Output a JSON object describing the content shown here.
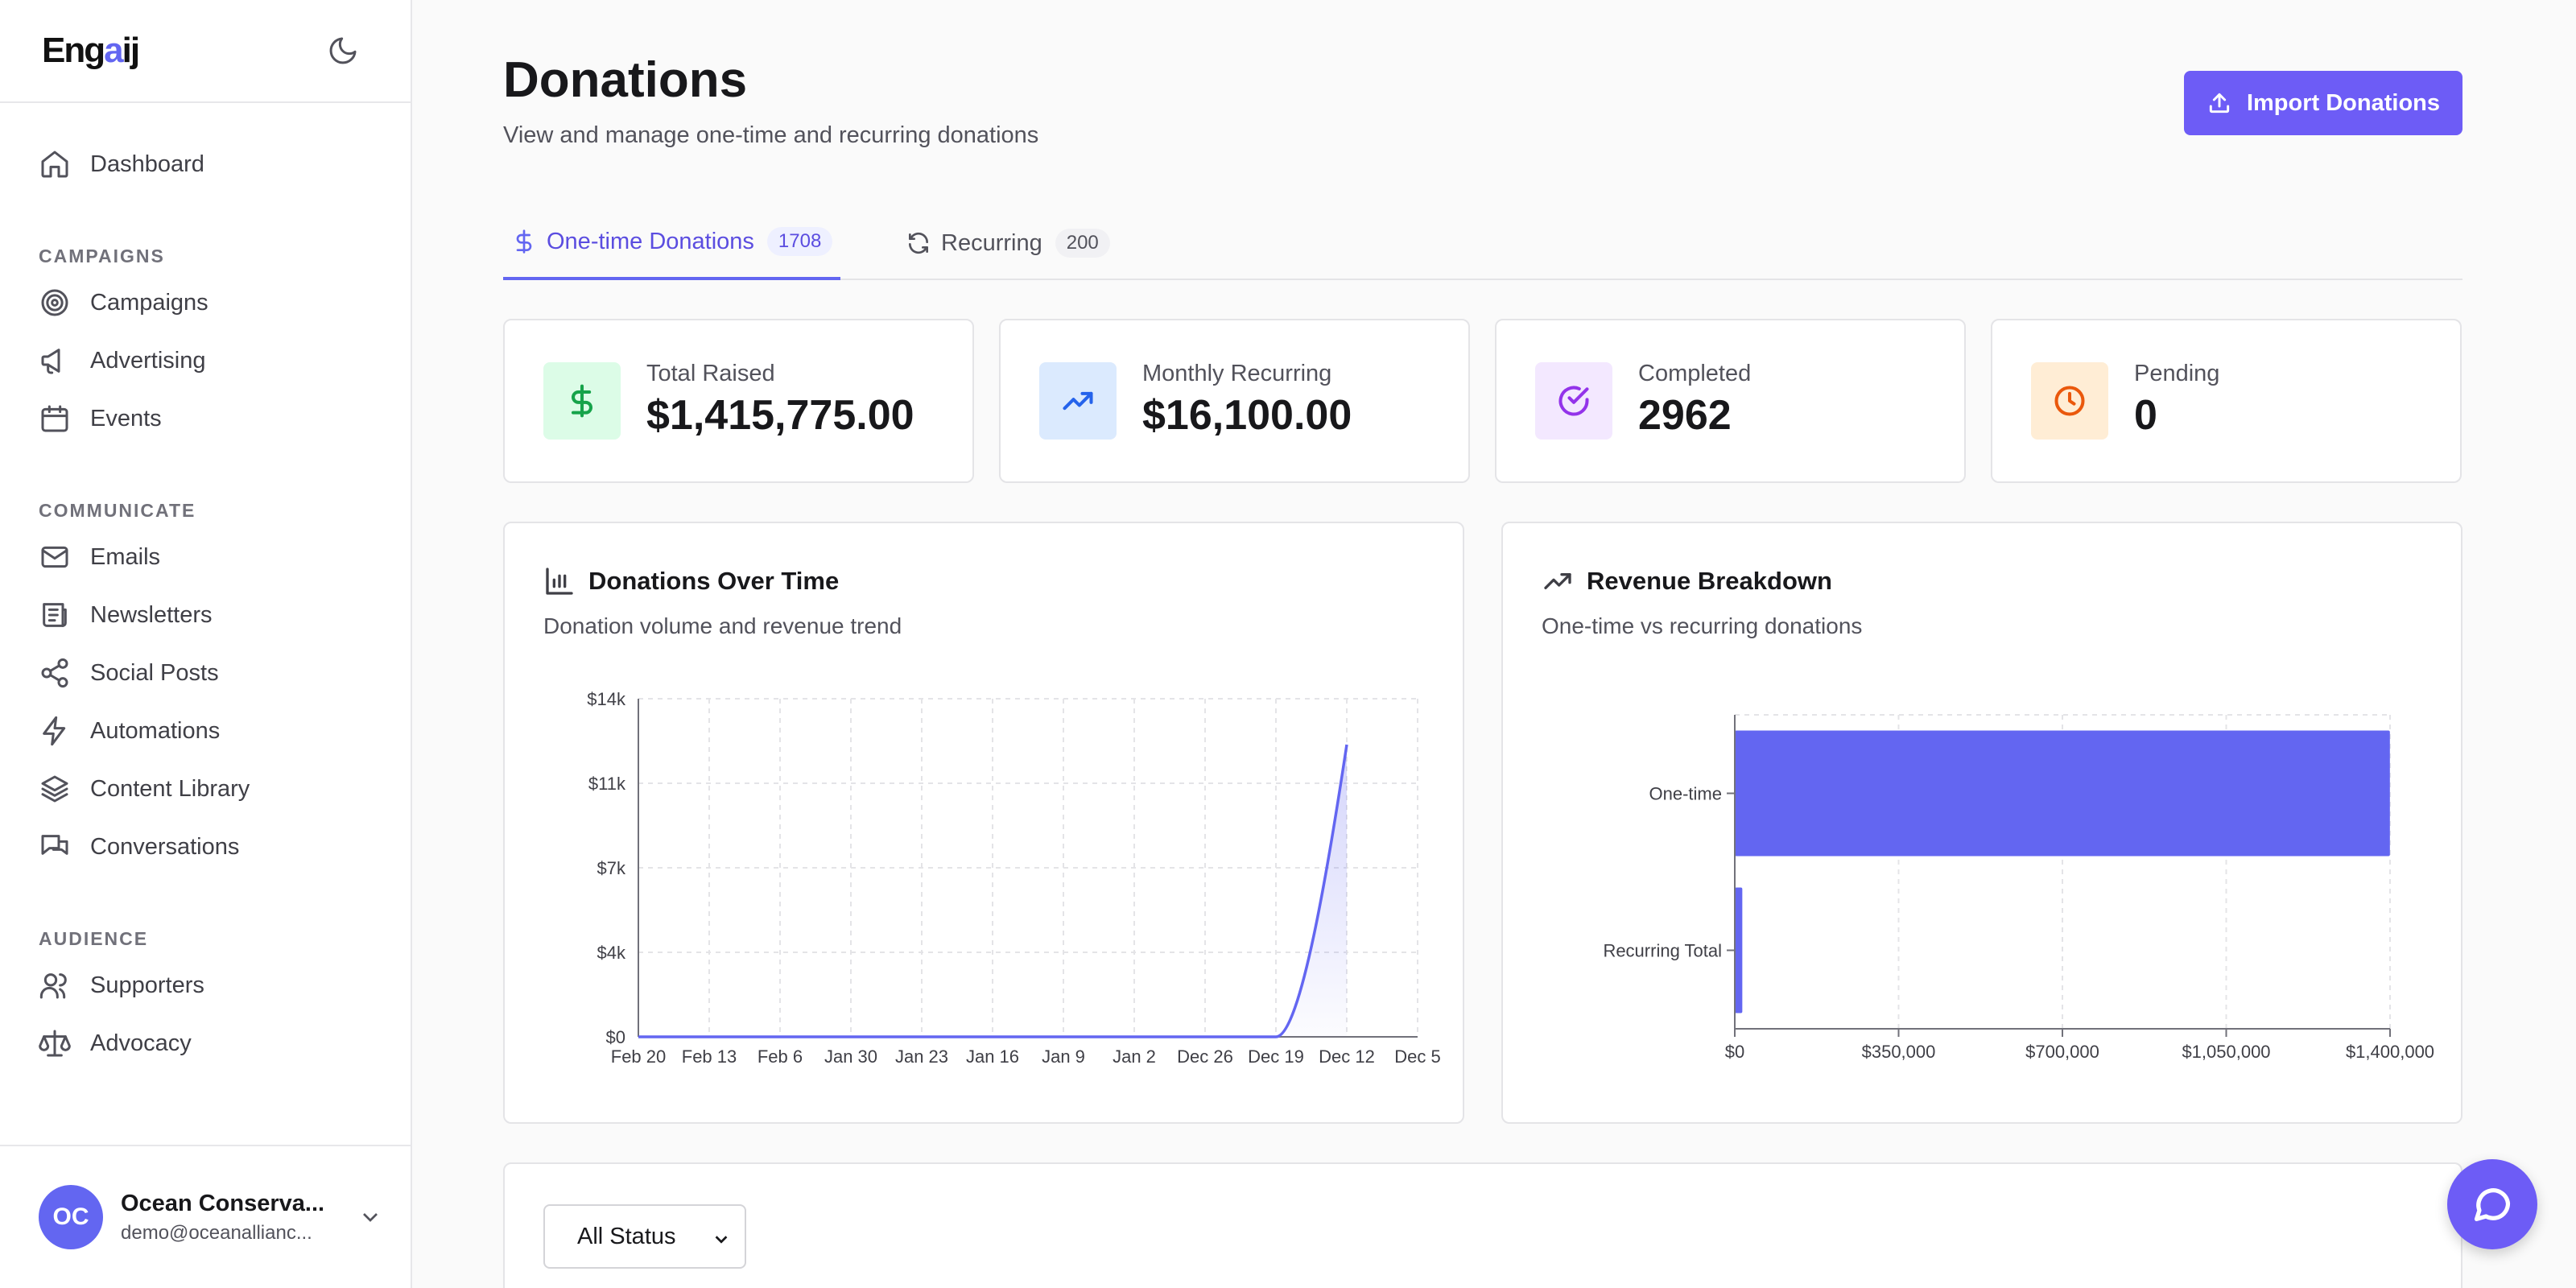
{
  "brand": {
    "logo_prefix": "Eng",
    "logo_accent": "a",
    "logo_suffix": "ij",
    "accent_color": "#6366f1"
  },
  "sidebar": {
    "dashboard": "Dashboard",
    "sections": {
      "campaigns": "CAMPAIGNS",
      "communicate": "COMMUNICATE",
      "audience": "AUDIENCE"
    },
    "items": {
      "campaigns": "Campaigns",
      "advertising": "Advertising",
      "events": "Events",
      "emails": "Emails",
      "newsletters": "Newsletters",
      "social_posts": "Social Posts",
      "automations": "Automations",
      "content_library": "Content Library",
      "conversations": "Conversations",
      "supporters": "Supporters",
      "advocacy": "Advocacy"
    },
    "profile": {
      "initials": "OC",
      "name": "Ocean Conserva...",
      "email": "demo@oceanallianc..."
    }
  },
  "header": {
    "title": "Donations",
    "subtitle": "View and manage one-time and recurring donations",
    "import_label": "Import Donations"
  },
  "tabs": [
    {
      "label": "One-time Donations",
      "count": "1708",
      "active": true
    },
    {
      "label": "Recurring",
      "count": "200",
      "active": false
    }
  ],
  "stats": [
    {
      "label": "Total Raised",
      "value": "$1,415,775.00",
      "icon": "dollar-icon",
      "color": "#16a34a"
    },
    {
      "label": "Monthly Recurring",
      "value": "$16,100.00",
      "icon": "trending-up-icon",
      "color": "#2563eb"
    },
    {
      "label": "Completed",
      "value": "2962",
      "icon": "check-circle-icon",
      "color": "#9333ea"
    },
    {
      "label": "Pending",
      "value": "0",
      "icon": "clock-icon",
      "color": "#ea580c"
    }
  ],
  "donations_chart": {
    "title": "Donations Over Time",
    "subtitle": "Donation volume and revenue trend"
  },
  "revenue_chart": {
    "title": "Revenue Breakdown",
    "subtitle": "One-time vs recurring donations"
  },
  "chart_data": [
    {
      "type": "area",
      "title": "Donations Over Time",
      "x": [
        "Feb 20",
        "Feb 13",
        "Feb 6",
        "Jan 30",
        "Jan 23",
        "Jan 16",
        "Jan 9",
        "Jan 2",
        "Dec 26",
        "Dec 19",
        "Dec 12",
        "Dec 5"
      ],
      "y_ticks": [
        "$0",
        "$4k",
        "$7k",
        "$11k",
        "$14k"
      ],
      "ylim": [
        0,
        14000
      ],
      "series": [
        {
          "values": [
            0,
            0,
            0,
            0,
            0,
            0,
            0,
            0,
            0,
            0,
            12100,
            null
          ]
        }
      ],
      "color": "#6366f1",
      "grid": true
    },
    {
      "type": "bar",
      "orientation": "horizontal",
      "title": "Revenue Breakdown",
      "categories": [
        "One-time",
        "Recurring Total"
      ],
      "values": [
        1399675,
        16100
      ],
      "x_ticks": [
        "$0",
        "$350,000",
        "$700,000",
        "$1,050,000",
        "$1,400,000"
      ],
      "xlim": [
        0,
        1400000
      ],
      "color": "#6366f1",
      "grid": true
    }
  ],
  "filter": {
    "status_select": "All Status"
  }
}
